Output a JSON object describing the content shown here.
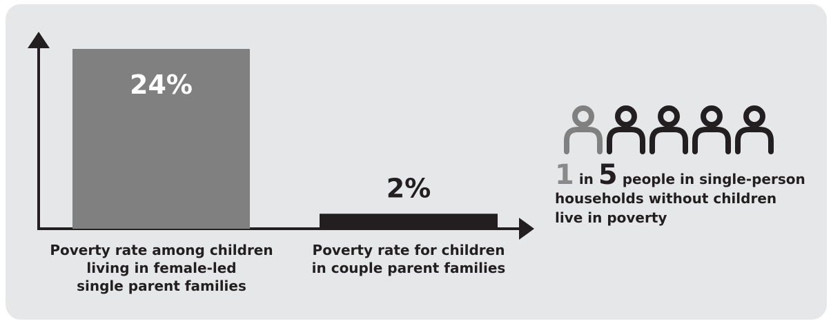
{
  "chart_data": {
    "type": "bar",
    "categories": [
      "Poverty rate among children\nliving in female-led\nsingle parent families",
      "Poverty rate for children\nin couple parent families"
    ],
    "values": [
      24,
      2
    ],
    "value_labels": [
      "24%",
      "2%"
    ],
    "bar_colors": [
      "#808080",
      "#231f20"
    ],
    "ylim": [
      0,
      24
    ]
  },
  "callout": {
    "count": "1",
    "of_word": "in",
    "total": "5",
    "line1_rest": "people in single-person",
    "line2": "households without children",
    "line3": "live in poverty",
    "highlighted_people": 1,
    "highlight_color": "#808080",
    "base_color": "#231f20"
  }
}
